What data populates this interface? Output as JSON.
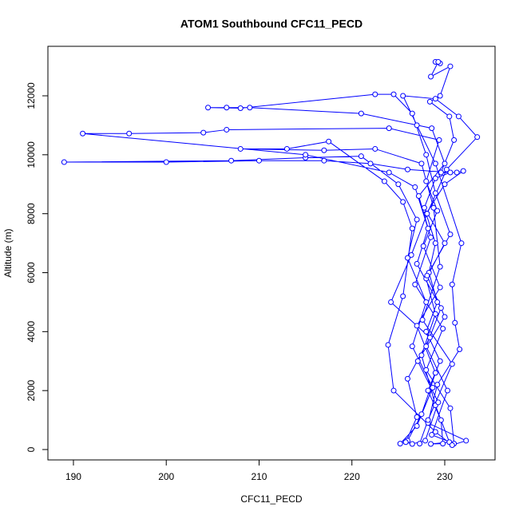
{
  "chart_data": {
    "type": "line",
    "title": "ATOM1 Southbound CFC11_PECD",
    "x_label": "CFC11_PECD",
    "y_label": "Altitude (m)",
    "color": "#0000ff",
    "markers": true,
    "xlim": [
      187.25,
      235.42
    ],
    "ylim": [
      -352,
      13679
    ],
    "xticks": [
      190,
      200,
      210,
      220,
      230
    ],
    "yticks": [
      0,
      2000,
      4000,
      6000,
      8000,
      10000,
      12000
    ],
    "x": [
      229.5,
      229,
      229.3,
      228.5,
      230.6,
      229.5,
      228.4,
      230.5,
      231,
      229.6,
      231.3,
      232,
      230,
      228,
      229,
      228.3,
      229.2,
      228,
      229.5,
      228.2,
      229.6,
      229.8,
      228.5,
      230.5,
      229,
      227.5,
      229,
      228,
      230,
      227.8,
      229,
      230.6,
      226,
      222,
      217,
      210,
      200,
      189,
      207,
      215,
      221,
      225,
      227,
      226,
      228,
      226.5,
      228.7,
      227,
      225.2,
      226,
      227.5,
      229,
      227,
      229.5,
      227.7,
      229.2,
      228,
      229.4,
      224,
      206.5,
      204,
      196,
      191,
      215,
      224,
      226.8,
      228.2,
      227,
      229.6,
      228,
      230.3,
      228.6,
      231,
      230.6,
      228,
      229.8,
      226.8,
      228.5,
      227.2,
      230,
      228.6,
      221,
      209,
      206.5,
      204.5,
      208,
      222.5,
      224.5,
      226.5,
      228,
      229,
      230.6,
      228.1,
      230,
      227.1,
      229.3,
      227.9,
      226.5,
      225.8,
      227,
      226,
      228.4,
      224.2,
      226.4,
      228.1,
      230.2,
      233.5,
      231.5,
      229,
      225.5,
      227,
      229,
      231.8,
      230.8,
      231.1,
      231.6,
      229.2,
      228.2,
      232.3,
      230.8,
      229,
      224.5,
      223.9,
      225.5,
      226.5,
      225.5,
      223.5,
      217.5,
      213,
      208,
      217,
      222.5,
      227.5,
      228.8,
      229.5,
      227.6,
      230.8,
      228.2,
      227.3
    ],
    "values": [
      13100,
      13150,
      13150,
      12650,
      13000,
      12000,
      11800,
      11300,
      10500,
      9400,
      9400,
      9450,
      9000,
      8000,
      7000,
      6000,
      5000,
      4000,
      3000,
      2000,
      1000,
      200,
      190,
      250,
      1500,
      3200,
      4600,
      5800,
      7000,
      8200,
      9200,
      9400,
      9500,
      9700,
      9800,
      9800,
      9750,
      9750,
      9800,
      9900,
      9950,
      9000,
      7800,
      6500,
      5000,
      3500,
      2100,
      800,
      200,
      300,
      1200,
      2600,
      4200,
      5500,
      6900,
      8100,
      9100,
      10500,
      10900,
      10850,
      10750,
      10720,
      10720,
      10000,
      9400,
      8900,
      7500,
      6300,
      4800,
      3500,
      2000,
      500,
      200,
      1400,
      2700,
      4100,
      5600,
      7200,
      8600,
      9700,
      10900,
      11400,
      11600,
      11600,
      11600,
      11580,
      12050,
      12050,
      11400,
      10000,
      8700,
      7300,
      5900,
      4500,
      3000,
      1600,
      300,
      190,
      250,
      1100,
      2400,
      3800,
      5000,
      6600,
      8000,
      9500,
      10600,
      11300,
      11900,
      12000,
      11000,
      9700,
      7000,
      5600,
      4300,
      3400,
      2200,
      900,
      300,
      150,
      600,
      2000,
      3550,
      5200,
      7500,
      8400,
      9100,
      10450,
      10200,
      10200,
      10150,
      10200,
      9700,
      8200,
      6200,
      4400,
      2900,
      1000,
      200
    ]
  }
}
